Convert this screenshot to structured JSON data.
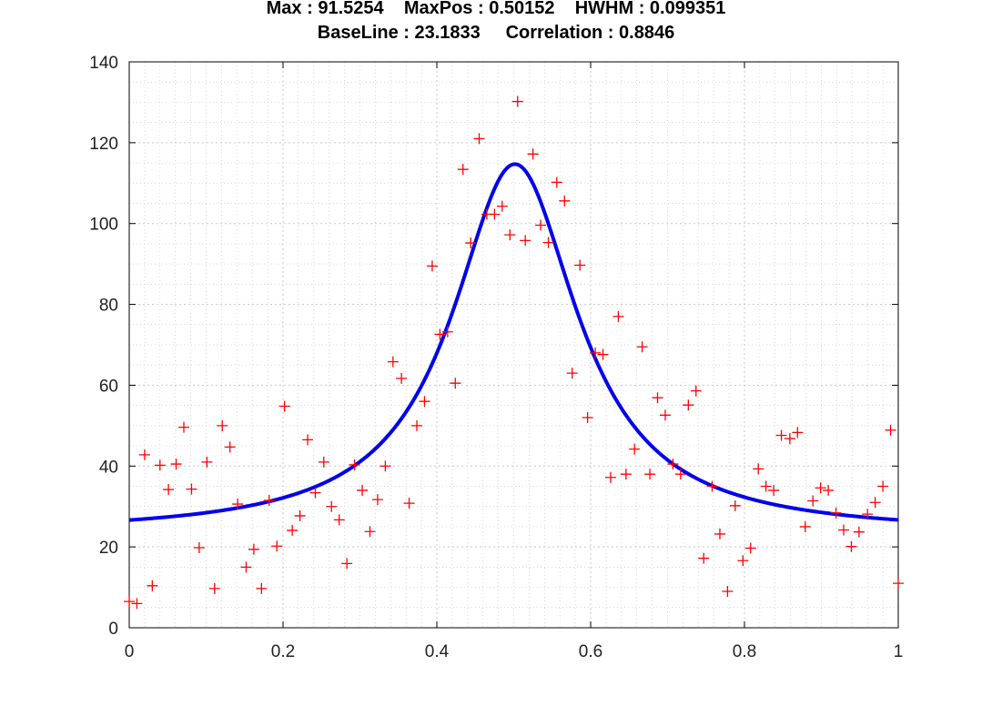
{
  "chart_data": {
    "type": "scatter",
    "title_lines": [
      "Max : 91.5254    MaxPos : 0.50152    HWHM : 0.099351",
      "BaseLine : 23.1833     Correlation : 0.8846"
    ],
    "xlabel": "",
    "ylabel": "",
    "xlim": [
      0,
      1
    ],
    "ylim": [
      0,
      140
    ],
    "x_ticks": [
      "0",
      "0.2",
      "0.4",
      "0.6",
      "0.8",
      "1"
    ],
    "y_ticks": [
      "0",
      "20",
      "40",
      "60",
      "80",
      "100",
      "120",
      "140"
    ],
    "grid": true,
    "grid_minor": true,
    "colors": {
      "points": "#ff0000",
      "fit": "#0000ee",
      "axes": "#000000",
      "grid": "#c8c8c8"
    },
    "fit": {
      "model": "lorentzian",
      "max": 91.5254,
      "max_pos": 0.50152,
      "hwhm": 0.099351,
      "baseline": 23.1833
    },
    "points": [
      [
        0.0,
        6.5
      ],
      [
        0.01,
        6.0
      ],
      [
        0.02,
        42.8
      ],
      [
        0.03,
        10.4
      ],
      [
        0.04,
        40.2
      ],
      [
        0.051,
        34.2
      ],
      [
        0.061,
        40.5
      ],
      [
        0.071,
        49.6
      ],
      [
        0.081,
        34.3
      ],
      [
        0.091,
        19.8
      ],
      [
        0.101,
        41.0
      ],
      [
        0.111,
        9.7
      ],
      [
        0.121,
        50.0
      ],
      [
        0.131,
        44.7
      ],
      [
        0.141,
        30.6
      ],
      [
        0.152,
        15.0
      ],
      [
        0.162,
        19.4
      ],
      [
        0.172,
        9.7
      ],
      [
        0.182,
        31.5
      ],
      [
        0.192,
        20.2
      ],
      [
        0.202,
        54.8
      ],
      [
        0.212,
        24.1
      ],
      [
        0.222,
        27.7
      ],
      [
        0.232,
        46.5
      ],
      [
        0.242,
        33.4
      ],
      [
        0.253,
        41.0
      ],
      [
        0.263,
        30.0
      ],
      [
        0.273,
        26.7
      ],
      [
        0.283,
        15.9
      ],
      [
        0.293,
        40.3
      ],
      [
        0.303,
        34.0
      ],
      [
        0.313,
        23.8
      ],
      [
        0.323,
        31.7
      ],
      [
        0.333,
        40.0
      ],
      [
        0.343,
        65.8
      ],
      [
        0.354,
        61.7
      ],
      [
        0.364,
        30.8
      ],
      [
        0.374,
        50.0
      ],
      [
        0.384,
        56.0
      ],
      [
        0.394,
        89.5
      ],
      [
        0.404,
        72.6
      ],
      [
        0.414,
        73.2
      ],
      [
        0.424,
        60.5
      ],
      [
        0.434,
        113.4
      ],
      [
        0.444,
        95.2
      ],
      [
        0.455,
        121.0
      ],
      [
        0.465,
        102.3
      ],
      [
        0.475,
        102.3
      ],
      [
        0.485,
        104.3
      ],
      [
        0.495,
        97.2
      ],
      [
        0.505,
        130.2
      ],
      [
        0.515,
        95.8
      ],
      [
        0.525,
        117.2
      ],
      [
        0.535,
        99.6
      ],
      [
        0.545,
        95.3
      ],
      [
        0.556,
        110.2
      ],
      [
        0.566,
        105.6
      ],
      [
        0.576,
        63.0
      ],
      [
        0.586,
        89.7
      ],
      [
        0.596,
        52.0
      ],
      [
        0.606,
        68.0
      ],
      [
        0.616,
        67.6
      ],
      [
        0.626,
        37.2
      ],
      [
        0.636,
        77.0
      ],
      [
        0.646,
        38.0
      ],
      [
        0.657,
        44.2
      ],
      [
        0.667,
        69.5
      ],
      [
        0.677,
        38.0
      ],
      [
        0.687,
        56.9
      ],
      [
        0.697,
        52.6
      ],
      [
        0.707,
        40.5
      ],
      [
        0.717,
        38.0
      ],
      [
        0.727,
        55.1
      ],
      [
        0.737,
        58.6
      ],
      [
        0.747,
        17.2
      ],
      [
        0.758,
        35.0
      ],
      [
        0.768,
        23.2
      ],
      [
        0.778,
        9.0
      ],
      [
        0.788,
        30.2
      ],
      [
        0.798,
        16.6
      ],
      [
        0.808,
        19.7
      ],
      [
        0.818,
        39.3
      ],
      [
        0.828,
        35.0
      ],
      [
        0.838,
        34.0
      ],
      [
        0.848,
        47.6
      ],
      [
        0.859,
        46.8
      ],
      [
        0.869,
        48.3
      ],
      [
        0.879,
        25.0
      ],
      [
        0.889,
        31.4
      ],
      [
        0.899,
        34.6
      ],
      [
        0.909,
        34.0
      ],
      [
        0.919,
        28.4
      ],
      [
        0.929,
        24.2
      ],
      [
        0.939,
        20.1
      ],
      [
        0.949,
        23.7
      ],
      [
        0.96,
        28.1
      ],
      [
        0.97,
        31.0
      ],
      [
        0.98,
        35.0
      ],
      [
        0.99,
        48.9
      ],
      [
        1.0,
        11.0
      ]
    ]
  }
}
